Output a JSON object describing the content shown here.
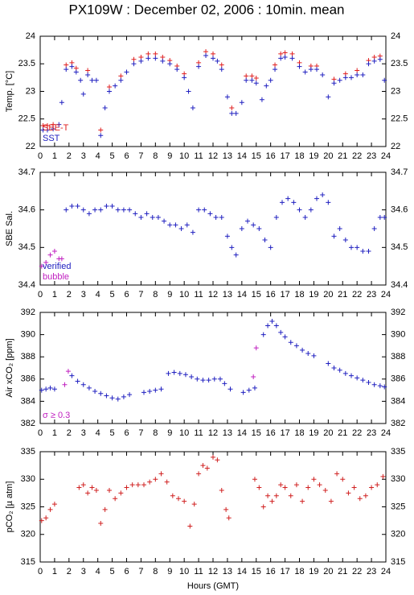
{
  "title": "PX109W : December 02, 2006 : 10min. mean",
  "chart_data": [
    {
      "type": "scatter",
      "ylabel": "Temp. [°C]",
      "xlim": [
        0,
        24
      ],
      "xticks": [
        0,
        1,
        2,
        3,
        4,
        5,
        6,
        7,
        8,
        9,
        10,
        11,
        12,
        13,
        14,
        15,
        16,
        17,
        18,
        19,
        20,
        21,
        22,
        23,
        24
      ],
      "ylim": [
        22,
        24
      ],
      "yticks": [
        22,
        22.5,
        23,
        23.5,
        24
      ],
      "legend": "lower left",
      "series": [
        {
          "name": "SBE-T",
          "color": "#e02020",
          "x": [
            0.2,
            0.5,
            0.9,
            1.8,
            2.2,
            2.5,
            3.3,
            4.2,
            4.8,
            5.6,
            6.5,
            7.0,
            7.5,
            8.0,
            8.5,
            9.0,
            9.5,
            10.0,
            11.0,
            11.5,
            12.0,
            12.6,
            13.3,
            14.3,
            14.7,
            15.0,
            16.3,
            16.7,
            17.0,
            17.5,
            18.0,
            18.8,
            19.2,
            20.4,
            21.2,
            22.0,
            22.8,
            23.2,
            23.6
          ],
          "values": [
            22.38,
            22.38,
            22.4,
            23.48,
            23.52,
            23.42,
            23.38,
            22.3,
            23.08,
            23.28,
            23.58,
            23.62,
            23.68,
            23.68,
            23.62,
            23.56,
            23.46,
            23.32,
            23.52,
            23.72,
            23.68,
            23.48,
            22.7,
            23.28,
            23.28,
            23.24,
            23.48,
            23.68,
            23.7,
            23.68,
            23.52,
            23.46,
            23.46,
            23.22,
            23.32,
            23.38,
            23.56,
            23.62,
            23.64
          ]
        },
        {
          "name": "SST",
          "color": "#2020c0",
          "x": [
            0.2,
            0.5,
            0.9,
            1.3,
            1.5,
            1.8,
            2.2,
            2.5,
            2.8,
            3.0,
            3.3,
            3.6,
            3.9,
            4.2,
            4.5,
            4.8,
            5.2,
            5.6,
            6.0,
            6.5,
            7.0,
            7.5,
            8.0,
            8.5,
            9.0,
            9.5,
            10.0,
            10.3,
            10.6,
            11.0,
            11.5,
            12.0,
            12.3,
            12.6,
            13.0,
            13.3,
            13.6,
            14.0,
            14.3,
            14.7,
            15.0,
            15.4,
            15.7,
            16.0,
            16.3,
            16.7,
            17.0,
            17.5,
            18.0,
            18.4,
            18.8,
            19.2,
            19.6,
            20.0,
            20.4,
            20.8,
            21.2,
            21.6,
            22.0,
            22.4,
            22.8,
            23.2,
            23.6,
            23.9
          ],
          "values": [
            22.3,
            22.3,
            22.32,
            22.4,
            22.8,
            23.4,
            23.45,
            23.35,
            23.2,
            22.95,
            23.3,
            23.2,
            23.2,
            22.2,
            22.7,
            23.0,
            23.1,
            23.2,
            23.35,
            23.5,
            23.55,
            23.6,
            23.6,
            23.55,
            23.5,
            23.4,
            23.25,
            23.0,
            22.7,
            23.45,
            23.65,
            23.6,
            23.55,
            23.4,
            22.9,
            22.6,
            22.6,
            22.8,
            23.2,
            23.2,
            23.15,
            22.85,
            23.1,
            23.2,
            23.4,
            23.6,
            23.62,
            23.6,
            23.45,
            23.35,
            23.4,
            23.4,
            23.3,
            22.9,
            23.15,
            23.2,
            23.25,
            23.25,
            23.3,
            23.3,
            23.5,
            23.55,
            23.58,
            23.2
          ]
        }
      ]
    },
    {
      "type": "scatter",
      "ylabel": "SBE Sal.",
      "xlim": [
        0,
        24
      ],
      "xticks": [
        0,
        1,
        2,
        3,
        4,
        5,
        6,
        7,
        8,
        9,
        10,
        11,
        12,
        13,
        14,
        15,
        16,
        17,
        18,
        19,
        20,
        21,
        22,
        23,
        24
      ],
      "ylim": [
        34.4,
        34.7
      ],
      "yticks": [
        34.4,
        34.5,
        34.6,
        34.7
      ],
      "legend": "lower left",
      "series": [
        {
          "name": "verified",
          "color": "#2020c0",
          "x": [
            1.8,
            2.2,
            2.6,
            3.0,
            3.4,
            3.8,
            4.2,
            4.6,
            5.0,
            5.4,
            5.8,
            6.2,
            6.6,
            7.0,
            7.4,
            7.8,
            8.2,
            8.6,
            9.0,
            9.4,
            9.8,
            10.2,
            10.6,
            11.0,
            11.4,
            11.8,
            12.2,
            12.6,
            13.0,
            13.3,
            13.6,
            14.0,
            14.4,
            14.8,
            15.2,
            15.6,
            16.0,
            16.4,
            16.8,
            17.2,
            17.6,
            18.0,
            18.4,
            18.8,
            19.2,
            19.6,
            20.0,
            20.4,
            20.8,
            21.2,
            21.6,
            22.0,
            22.4,
            22.8,
            23.2,
            23.6,
            23.9
          ],
          "values": [
            34.6,
            34.61,
            34.61,
            34.6,
            34.59,
            34.6,
            34.6,
            34.61,
            34.61,
            34.6,
            34.6,
            34.6,
            34.59,
            34.58,
            34.59,
            34.58,
            34.58,
            34.57,
            34.56,
            34.56,
            34.55,
            34.56,
            34.54,
            34.6,
            34.6,
            34.59,
            34.58,
            34.58,
            34.53,
            34.5,
            34.48,
            34.55,
            34.57,
            34.56,
            34.55,
            34.52,
            34.5,
            34.58,
            34.62,
            34.63,
            34.62,
            34.6,
            34.58,
            34.6,
            34.63,
            34.64,
            34.62,
            34.53,
            34.55,
            34.52,
            34.5,
            34.5,
            34.49,
            34.49,
            34.55,
            34.58,
            34.58
          ]
        },
        {
          "name": "bubble",
          "color": "#c020c0",
          "x": [
            0.1,
            0.4,
            0.7,
            1.0,
            1.3,
            1.5
          ],
          "values": [
            34.45,
            34.46,
            34.48,
            34.49,
            34.47,
            34.47
          ]
        }
      ]
    },
    {
      "type": "scatter",
      "ylabel": "Air xCO₂ [ppm]",
      "xlim": [
        0,
        24
      ],
      "xticks": [
        0,
        1,
        2,
        3,
        4,
        5,
        6,
        7,
        8,
        9,
        10,
        11,
        12,
        13,
        14,
        15,
        16,
        17,
        18,
        19,
        20,
        21,
        22,
        23,
        24
      ],
      "ylim": [
        382,
        392
      ],
      "yticks": [
        382,
        384,
        386,
        388,
        390,
        392
      ],
      "legend": "lower left",
      "series": [
        {
          "color": "#2020c0",
          "x": [
            0.1,
            0.4,
            0.7,
            1.0,
            2.2,
            2.6,
            3.0,
            3.4,
            3.8,
            4.2,
            4.6,
            5.0,
            5.4,
            5.8,
            6.2,
            7.2,
            7.6,
            8.0,
            8.4,
            8.9,
            9.3,
            9.7,
            10.1,
            10.5,
            10.9,
            11.3,
            11.7,
            12.1,
            12.5,
            12.8,
            13.2,
            14.1,
            14.5,
            14.9,
            15.5,
            15.8,
            16.1,
            16.4,
            16.7,
            17.0,
            17.4,
            17.8,
            18.2,
            18.6,
            19.0,
            20.0,
            20.4,
            20.8,
            21.2,
            21.6,
            22.0,
            22.4,
            22.8,
            23.2,
            23.6,
            23.9
          ],
          "values": [
            385.0,
            385.1,
            385.2,
            385.1,
            386.3,
            385.8,
            385.5,
            385.2,
            384.9,
            384.7,
            384.5,
            384.3,
            384.2,
            384.4,
            384.6,
            384.8,
            384.9,
            385.0,
            385.1,
            386.5,
            386.6,
            386.5,
            386.4,
            386.2,
            386.0,
            385.9,
            385.9,
            386.0,
            386.0,
            385.6,
            385.1,
            384.8,
            385.0,
            385.2,
            390.0,
            390.8,
            391.2,
            390.8,
            390.2,
            389.8,
            389.3,
            389.0,
            388.6,
            388.3,
            388.1,
            387.4,
            387.0,
            386.8,
            386.5,
            386.3,
            386.1,
            385.9,
            385.7,
            385.5,
            385.4,
            385.3
          ]
        },
        {
          "name": "σ ≥ 0.3",
          "color": "#c020c0",
          "x": [
            1.7,
            1.95,
            14.8,
            15.0
          ],
          "values": [
            385.5,
            386.7,
            386.2,
            388.8
          ]
        }
      ]
    },
    {
      "type": "scatter",
      "ylabel": "pCO₂ [µ atm]",
      "xlabel": "Hours (GMT)",
      "xlim": [
        0,
        24
      ],
      "xticks": [
        0,
        1,
        2,
        3,
        4,
        5,
        6,
        7,
        8,
        9,
        10,
        11,
        12,
        13,
        14,
        15,
        16,
        17,
        18,
        19,
        20,
        21,
        22,
        23,
        24
      ],
      "ylim": [
        315,
        335
      ],
      "yticks": [
        315,
        320,
        325,
        330,
        335
      ],
      "series": [
        {
          "color": "#d02020",
          "x": [
            0.1,
            0.4,
            0.7,
            1.0,
            2.7,
            3.0,
            3.3,
            3.6,
            3.9,
            4.2,
            4.5,
            4.8,
            5.2,
            5.6,
            6.0,
            6.4,
            6.8,
            7.2,
            7.6,
            8.0,
            8.4,
            8.8,
            9.2,
            9.6,
            10.0,
            10.4,
            10.7,
            11.0,
            11.3,
            11.6,
            12.0,
            12.3,
            12.6,
            12.9,
            13.1,
            14.9,
            15.2,
            15.5,
            15.8,
            16.1,
            16.4,
            16.7,
            17.0,
            17.4,
            17.8,
            18.2,
            18.6,
            19.0,
            19.4,
            19.8,
            20.2,
            20.6,
            21.0,
            21.4,
            21.8,
            22.2,
            22.6,
            23.0,
            23.4,
            23.8
          ],
          "values": [
            322.5,
            323.0,
            324.5,
            325.5,
            328.5,
            329.0,
            327.5,
            328.5,
            328.0,
            322.0,
            324.5,
            328.0,
            326.5,
            327.5,
            328.5,
            329.0,
            329.0,
            329.0,
            329.5,
            330.0,
            331.0,
            329.5,
            327.0,
            326.5,
            326.0,
            321.5,
            325.5,
            331.0,
            332.5,
            332.0,
            334.0,
            333.5,
            328.0,
            324.5,
            323.0,
            330.0,
            328.5,
            325.0,
            327.0,
            326.0,
            327.0,
            329.0,
            328.5,
            327.0,
            329.0,
            326.0,
            328.5,
            330.0,
            329.0,
            328.0,
            326.0,
            331.0,
            330.0,
            327.5,
            328.5,
            326.5,
            327.0,
            328.5,
            329.0,
            330.5
          ]
        }
      ]
    }
  ]
}
